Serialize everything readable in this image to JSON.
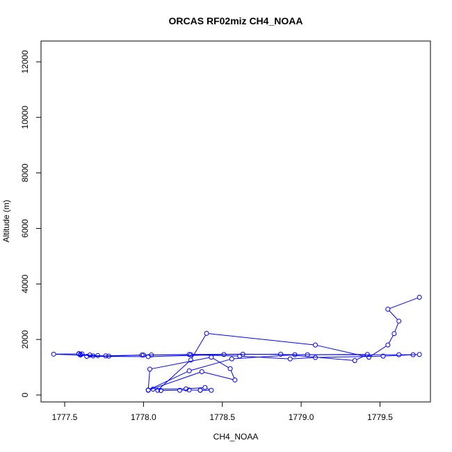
{
  "chart_data": {
    "type": "scatter",
    "title": "ORCAS RF02miz CH4_NOAA",
    "xlabel": "CH4_NOAA",
    "ylabel": "Altitude (m)",
    "xlim": [
      1777.35,
      1779.82
    ],
    "ylim": [
      -250,
      12750
    ],
    "x_ticks": [
      1777.5,
      1778.0,
      1778.5,
      1779.0,
      1779.5
    ],
    "x_tick_labels": [
      "1777.5",
      "1778.0",
      "1778.5",
      "1779.0",
      "1779.5"
    ],
    "y_ticks": [
      0,
      2000,
      4000,
      6000,
      8000,
      10000,
      12000
    ],
    "y_tick_labels": [
      "0",
      "2000",
      "4000",
      "6000",
      "8000",
      "10000",
      "12000"
    ],
    "grid": false,
    "legend": "none",
    "style": "points connected by lines (type='b')",
    "color": "#0000ff",
    "series": [
      {
        "x": [
          1779.75,
          1779.55,
          1779.62,
          1779.59,
          1779.55,
          1779.43,
          1779.09,
          1778.4,
          1778.3,
          1778.09,
          1778.11,
          1778.23,
          1778.29,
          1778.36,
          1778.36,
          1778.43,
          1778.39,
          1778.27,
          1778.06,
          1778.03,
          1778.37,
          1778.58,
          1778.55,
          1778.43,
          1778.04,
          1778.03,
          1778.29,
          1778.56,
          1778.96,
          1779.42,
          1779.34,
          1778.87,
          1778.51,
          1778.03,
          1777.64,
          1777.59,
          1777.43,
          1777.78,
          1778.0,
          1778.05,
          1778.29,
          1778.63,
          1779.04,
          1779.62,
          1779.71,
          1779.75,
          1779.52,
          1779.09,
          1778.93,
          1778.61,
          1778.3,
          1777.99,
          1777.76,
          1777.68,
          1777.71,
          1777.6,
          1777.59,
          1777.61,
          1777.6,
          1777.66
        ],
        "y": [
          3520,
          3090,
          2660,
          2210,
          1800,
          1360,
          1800,
          2220,
          1260,
          170,
          160,
          170,
          180,
          170,
          170,
          170,
          270,
          220,
          210,
          170,
          840,
          540,
          950,
          1360,
          930,
          180,
          870,
          1300,
          1450,
          1460,
          1240,
          1470,
          1460,
          1380,
          1390,
          1480,
          1470,
          1400,
          1440,
          1440,
          1460,
          1470,
          1450,
          1450,
          1450,
          1460,
          1400,
          1350,
          1300,
          1400,
          1450,
          1440,
          1410,
          1410,
          1420,
          1460,
          1490,
          1480,
          1440,
          1440
        ]
      }
    ]
  }
}
